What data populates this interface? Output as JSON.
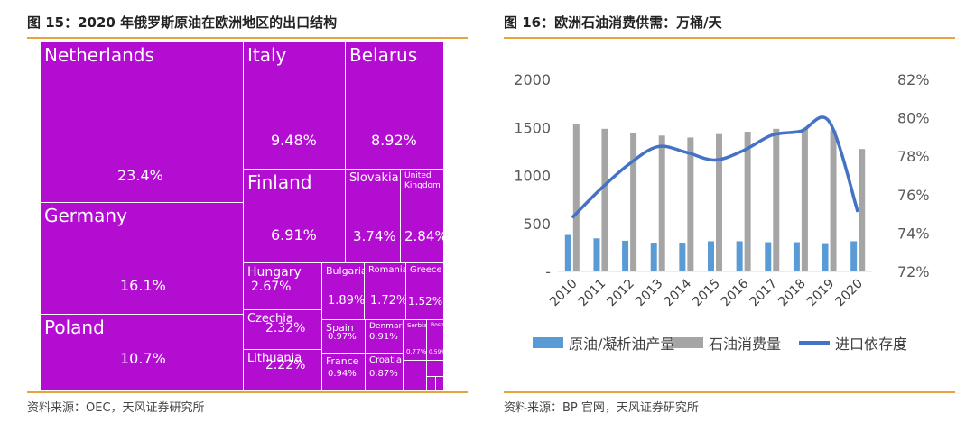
{
  "left": {
    "title": "图 15：2020 年俄罗斯原油在欧洲地区的出口结构",
    "source": "资料来源：OEC，天风证券研究所",
    "accent_color": "#E8A33D",
    "tile_color": "#B40DD2"
  },
  "right": {
    "title": "图 16：欧洲石油消费供需：万桶/天",
    "source": "资料来源：BP 官网，天风证券研究所"
  },
  "chart_data": [
    {
      "type": "treemap",
      "items": [
        {
          "name": "Netherlands",
          "value": "23.4%"
        },
        {
          "name": "Germany",
          "value": "16.1%"
        },
        {
          "name": "Poland",
          "value": "10.7%"
        },
        {
          "name": "Italy",
          "value": "9.48%"
        },
        {
          "name": "Belarus",
          "value": "8.92%"
        },
        {
          "name": "Finland",
          "value": "6.91%"
        },
        {
          "name": "Slovakia",
          "value": "3.74%"
        },
        {
          "name": "United Kingdom",
          "value": "2.84%"
        },
        {
          "name": "Hungary",
          "value": "2.67%"
        },
        {
          "name": "Czechia",
          "value": "2.32%"
        },
        {
          "name": "Lithuania",
          "value": "2.22%"
        },
        {
          "name": "Bulgaria",
          "value": "1.89%"
        },
        {
          "name": "Romania",
          "value": "1.72%"
        },
        {
          "name": "Greece",
          "value": "1.52%"
        },
        {
          "name": "Spain",
          "value": "0.97%"
        },
        {
          "name": "Denmark",
          "value": "0.91%"
        },
        {
          "name": "France",
          "value": "0.94%"
        },
        {
          "name": "Croatia",
          "value": "0.87%"
        },
        {
          "name": "Serbia",
          "value": "0.77%"
        },
        {
          "name": "Bosnia",
          "value": "0.59%"
        }
      ]
    },
    {
      "type": "bar+line",
      "categories": [
        "2010",
        "2011",
        "2012",
        "2013",
        "2014",
        "2015",
        "2016",
        "2017",
        "2018",
        "2019",
        "2020"
      ],
      "series": [
        {
          "name": "原油/凝析油产量",
          "type": "bar",
          "axis": "left",
          "color": "#5B9BD5",
          "values": [
            380,
            345,
            320,
            300,
            300,
            315,
            315,
            305,
            305,
            295,
            315
          ]
        },
        {
          "name": "石油消费量",
          "type": "bar",
          "axis": "left",
          "color": "#A5A5A5",
          "values": [
            1530,
            1485,
            1440,
            1415,
            1395,
            1430,
            1455,
            1485,
            1485,
            1470,
            1275
          ]
        },
        {
          "name": "进口依存度",
          "type": "line",
          "axis": "right",
          "color": "#4472C4",
          "values": [
            74.8,
            76.3,
            77.6,
            78.5,
            78.2,
            77.8,
            78.3,
            79.1,
            79.3,
            79.8,
            75.1
          ]
        }
      ],
      "left_axis": {
        "ticks": [
          "2000",
          "1500",
          "1000",
          "500",
          "-"
        ],
        "values": [
          2000,
          1500,
          1000,
          500,
          0
        ],
        "ylim": [
          0,
          2000
        ]
      },
      "right_axis": {
        "ticks": [
          "82%",
          "80%",
          "78%",
          "76%",
          "74%",
          "72%"
        ],
        "values": [
          82,
          80,
          78,
          76,
          74,
          72
        ],
        "ylim": [
          72,
          82
        ]
      },
      "legend_position": "bottom"
    }
  ]
}
